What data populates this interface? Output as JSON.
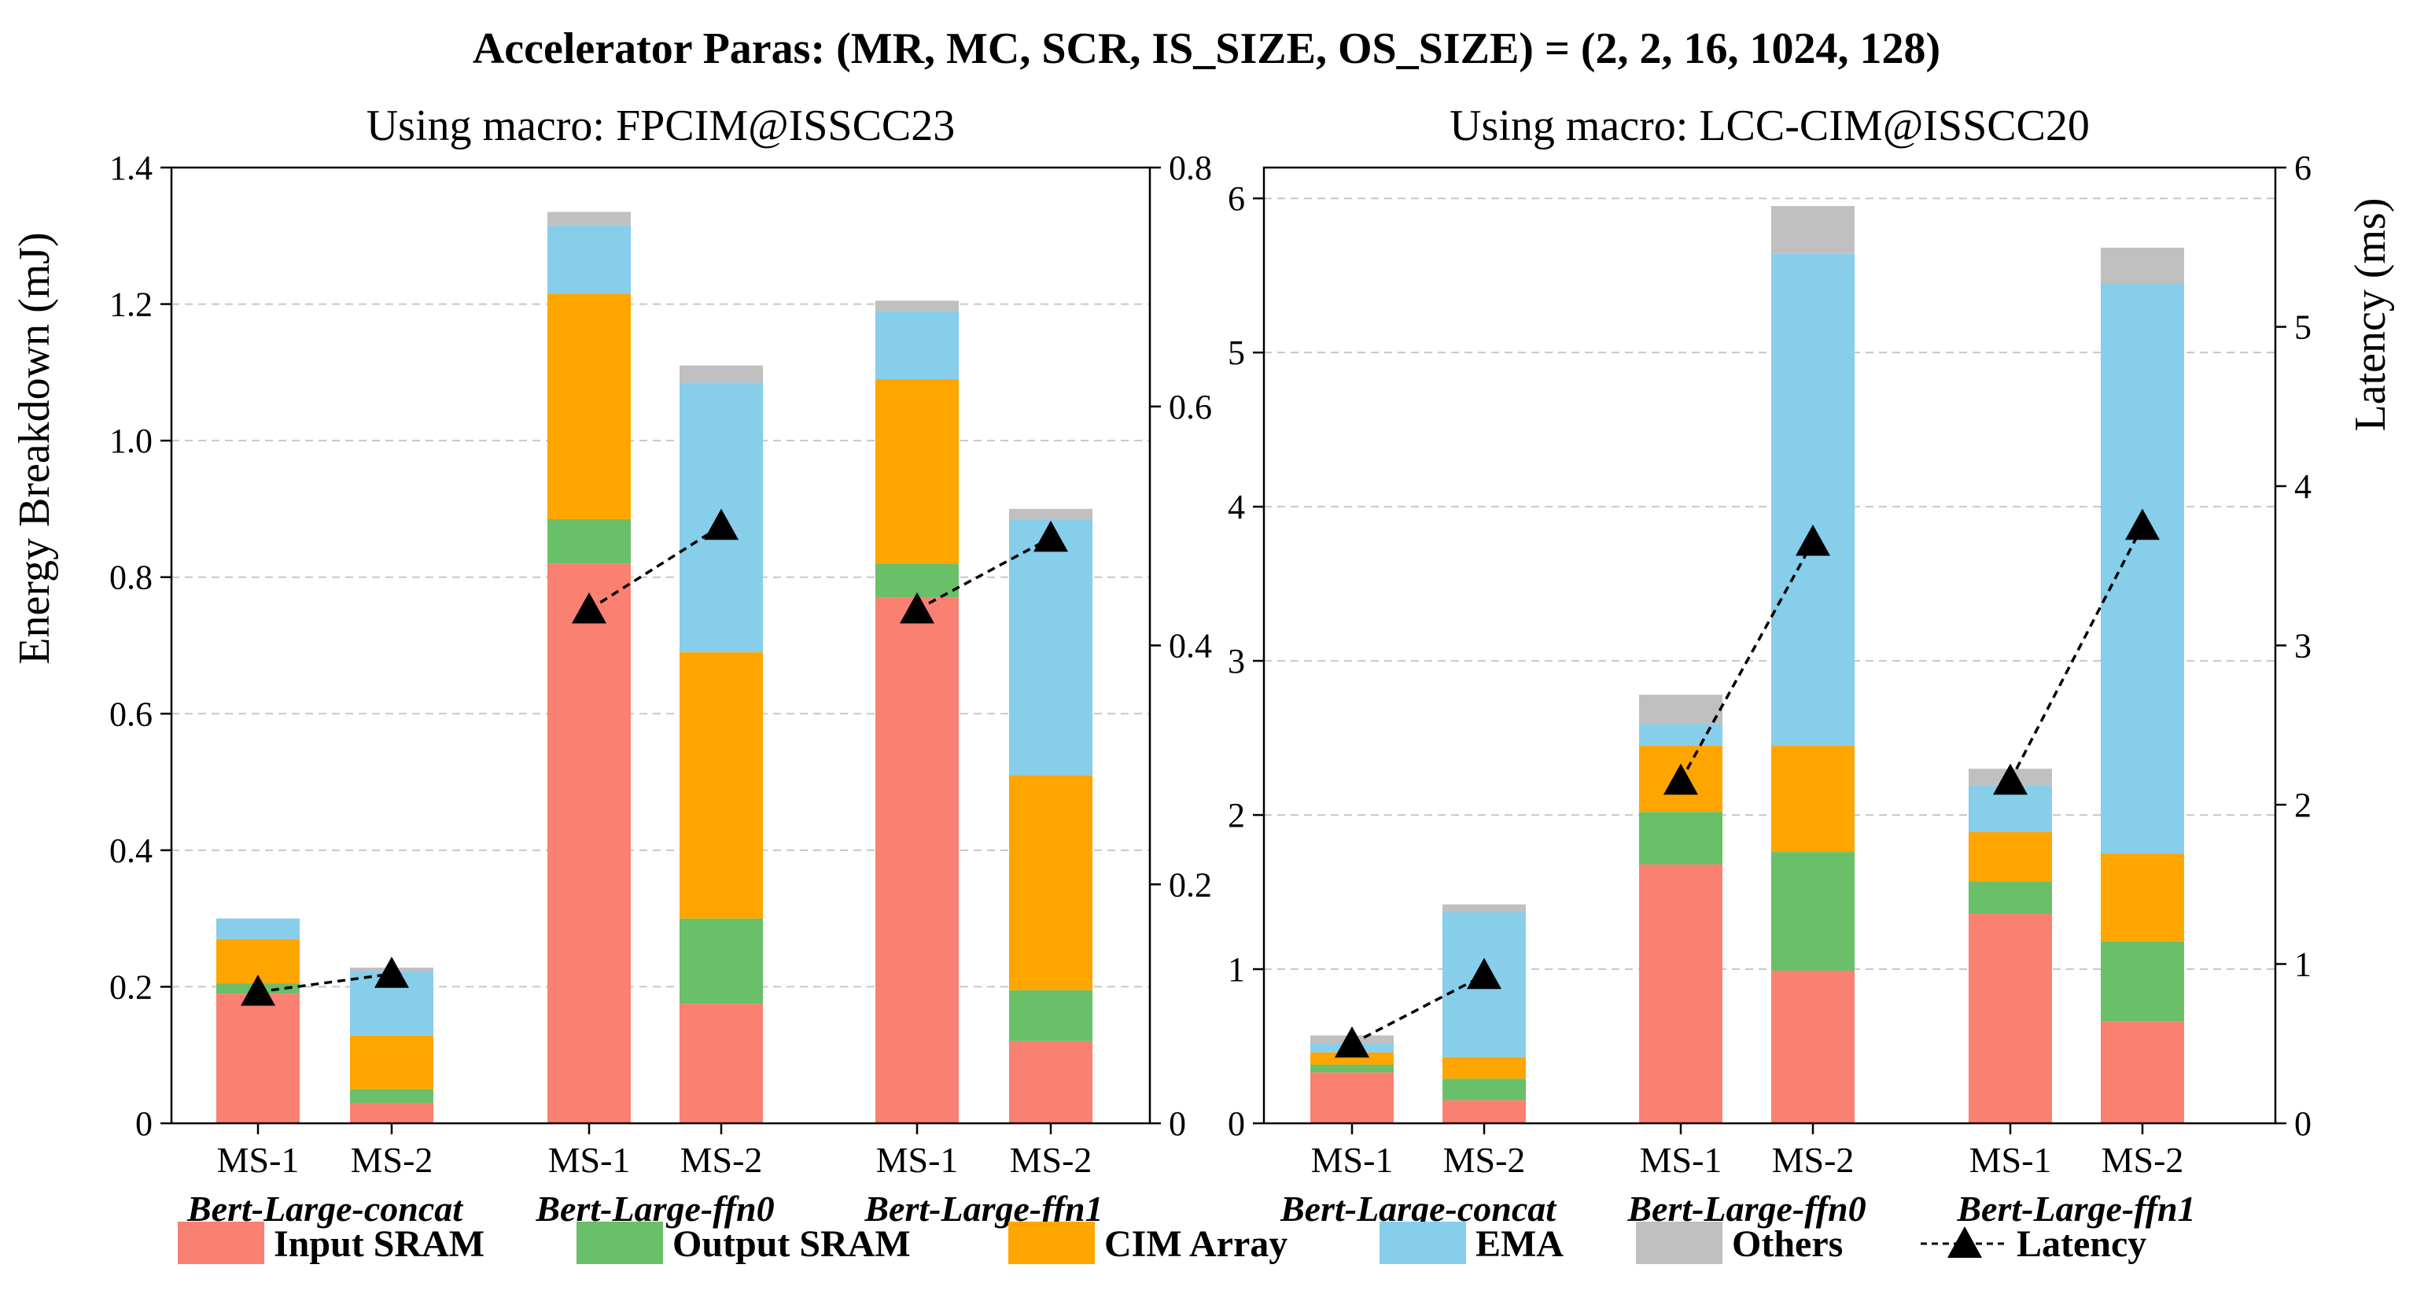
{
  "figure": {
    "title": "Accelerator Paras: (MR, MC, SCR, IS_SIZE, OS_SIZE) = (2, 2, 16, 1024, 128)",
    "y_left_label": "Energy Breakdown (mJ)",
    "y_right_label": "Latency (ms)"
  },
  "legend": [
    {
      "key": "input_sram",
      "label": "Input SRAM",
      "color": "#FA8072"
    },
    {
      "key": "output_sram",
      "label": "Output SRAM",
      "color": "#6ABF69"
    },
    {
      "key": "cim_array",
      "label": "CIM Array",
      "color": "#FFA500"
    },
    {
      "key": "ema",
      "label": "EMA",
      "color": "#87CEEB"
    },
    {
      "key": "others",
      "label": "Others",
      "color": "#C0C0C0"
    },
    {
      "key": "latency",
      "label": "Latency",
      "color": "#000000"
    }
  ],
  "chart_data": [
    {
      "type": "bar",
      "stacked": true,
      "subtitle": "Using macro: FPCIM@ISSCC23",
      "ylim_energy": [
        0,
        1.4
      ],
      "yticks_energy": [
        "0",
        "0.2",
        "0.4",
        "0.6",
        "0.8",
        "1.0",
        "1.2",
        "1.4"
      ],
      "ylim_latency": [
        0,
        0.8
      ],
      "yticks_latency": [
        "0",
        "0.2",
        "0.4",
        "0.6",
        "0.8"
      ],
      "grid": "horizontal dashed",
      "workloads": [
        "Bert-Large-concat",
        "Bert-Large-ffn0",
        "Bert-Large-ffn1"
      ],
      "bars": [
        {
          "workload": "Bert-Large-concat",
          "label": "MS-1",
          "input_sram": 0.19,
          "output_sram": 0.015,
          "cim_array": 0.065,
          "ema": 0.03,
          "others": 0.0,
          "latency": 0.11
        },
        {
          "workload": "Bert-Large-concat",
          "label": "MS-2",
          "input_sram": 0.03,
          "output_sram": 0.02,
          "cim_array": 0.078,
          "ema": 0.095,
          "others": 0.005,
          "latency": 0.125
        },
        {
          "workload": "Bert-Large-ffn0",
          "label": "MS-1",
          "input_sram": 0.82,
          "output_sram": 0.065,
          "cim_array": 0.33,
          "ema": 0.1,
          "others": 0.02,
          "latency": 0.43
        },
        {
          "workload": "Bert-Large-ffn0",
          "label": "MS-2",
          "input_sram": 0.175,
          "output_sram": 0.125,
          "cim_array": 0.39,
          "ema": 0.395,
          "others": 0.025,
          "latency": 0.5
        },
        {
          "workload": "Bert-Large-ffn1",
          "label": "MS-1",
          "input_sram": 0.77,
          "output_sram": 0.05,
          "cim_array": 0.27,
          "ema": 0.1,
          "others": 0.015,
          "latency": 0.43
        },
        {
          "workload": "Bert-Large-ffn1",
          "label": "MS-2",
          "input_sram": 0.12,
          "output_sram": 0.075,
          "cim_array": 0.315,
          "ema": 0.375,
          "others": 0.015,
          "latency": 0.49
        }
      ]
    },
    {
      "type": "bar",
      "stacked": true,
      "subtitle": "Using macro: LCC-CIM@ISSCC20",
      "ylim_energy": [
        0,
        6.2
      ],
      "yticks_energy": [
        "0",
        "1",
        "2",
        "3",
        "4",
        "5",
        "6"
      ],
      "ylim_latency": [
        0,
        6
      ],
      "yticks_latency": [
        "0",
        "1",
        "2",
        "3",
        "4",
        "5",
        "6"
      ],
      "grid": "horizontal dashed",
      "workloads": [
        "Bert-Large-concat",
        "Bert-Large-ffn0",
        "Bert-Large-ffn1"
      ],
      "bars": [
        {
          "workload": "Bert-Large-concat",
          "label": "MS-1",
          "input_sram": 0.33,
          "output_sram": 0.05,
          "cim_array": 0.08,
          "ema": 0.06,
          "others": 0.05,
          "latency": 0.5
        },
        {
          "workload": "Bert-Large-concat",
          "label": "MS-2",
          "input_sram": 0.15,
          "output_sram": 0.14,
          "cim_array": 0.14,
          "ema": 0.94,
          "others": 0.05,
          "latency": 0.93
        },
        {
          "workload": "Bert-Large-ffn0",
          "label": "MS-1",
          "input_sram": 1.68,
          "output_sram": 0.34,
          "cim_array": 0.43,
          "ema": 0.14,
          "others": 0.19,
          "latency": 2.15
        },
        {
          "workload": "Bert-Large-ffn0",
          "label": "MS-2",
          "input_sram": 0.99,
          "output_sram": 0.77,
          "cim_array": 0.69,
          "ema": 3.19,
          "others": 0.31,
          "latency": 3.65
        },
        {
          "workload": "Bert-Large-ffn1",
          "label": "MS-1",
          "input_sram": 1.36,
          "output_sram": 0.21,
          "cim_array": 0.32,
          "ema": 0.3,
          "others": 0.11,
          "latency": 2.15
        },
        {
          "workload": "Bert-Large-ffn1",
          "label": "MS-2",
          "input_sram": 0.66,
          "output_sram": 0.52,
          "cim_array": 0.57,
          "ema": 3.7,
          "others": 0.23,
          "latency": 3.75
        }
      ]
    }
  ]
}
